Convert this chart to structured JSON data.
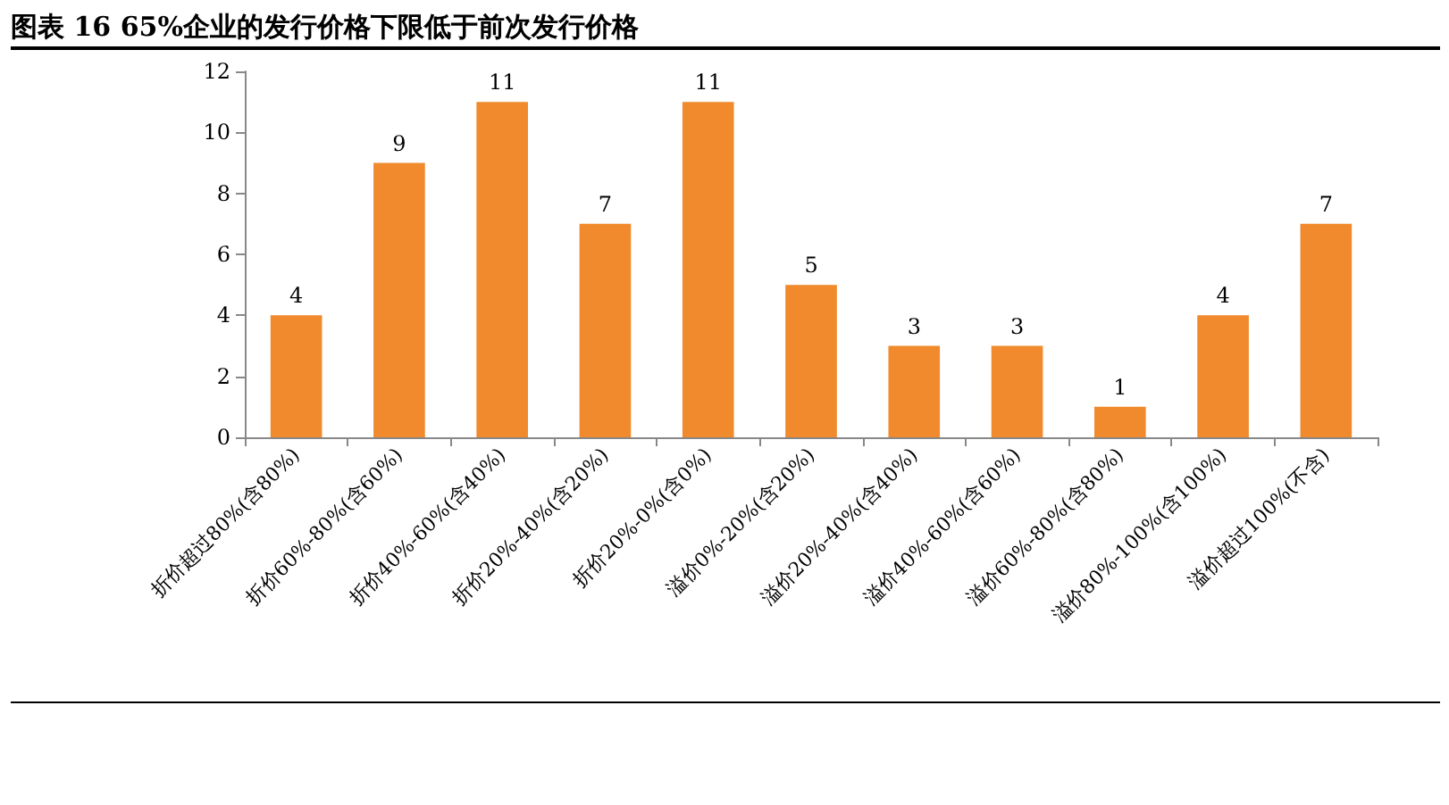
{
  "chart_data": {
    "type": "bar",
    "title": "图表 16 65%企业的发行价格下限低于前次发行价格",
    "categories": [
      "折价超过80%(含80%)",
      "折价60%-80%(含60%)",
      "折价40%-60%(含40%)",
      "折价20%-40%(含20%)",
      "折价20%-0%(含0%)",
      "溢价0%-20%(含20%)",
      "溢价20%-40%(含40%)",
      "溢价40%-60%(含60%)",
      "溢价60%-80%(含80%)",
      "溢价80%-100%(含100%)",
      "溢价超过100%(不含)"
    ],
    "values": [
      4,
      9,
      11,
      7,
      11,
      5,
      3,
      3,
      1,
      4,
      7
    ],
    "color": "#f08a2c",
    "ylim": [
      0,
      12
    ],
    "yticks": [
      0,
      2,
      4,
      6,
      8,
      10,
      12
    ],
    "grid": false,
    "data_labels": true
  }
}
